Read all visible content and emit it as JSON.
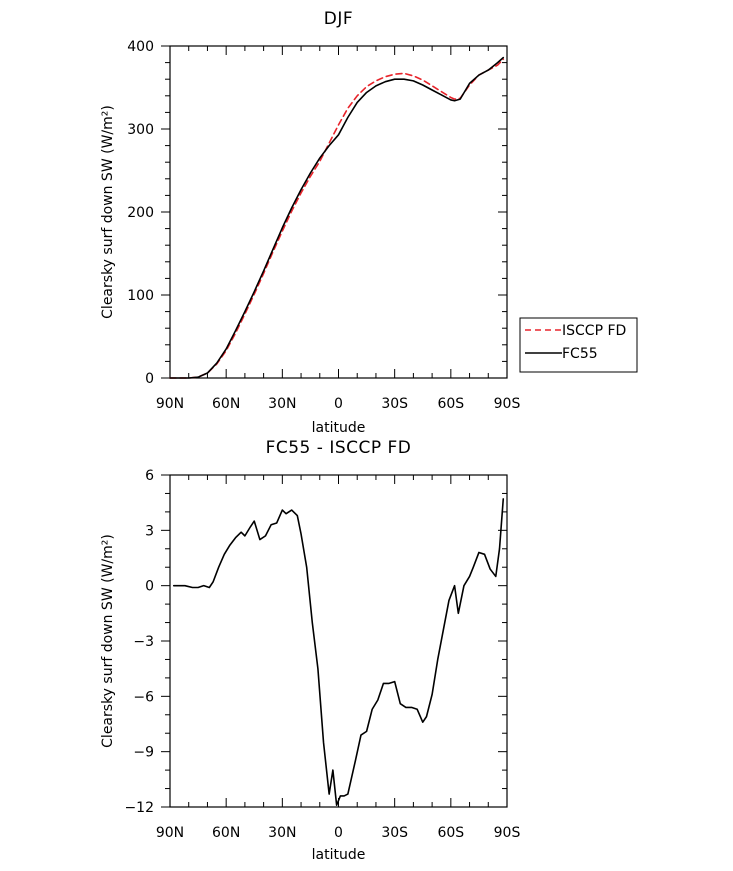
{
  "chart_data": [
    {
      "type": "line",
      "title": "DJF",
      "xlabel": "latitude",
      "ylabel": "Clearsky surf down SW (W/m²)",
      "xlim": [
        -90,
        90
      ],
      "ylim": [
        0,
        400
      ],
      "x_ticks": [
        -90,
        -60,
        -30,
        0,
        30,
        60,
        90
      ],
      "x_tick_labels": [
        "90N",
        "60N",
        "30N",
        "0",
        "30S",
        "60S",
        "90S"
      ],
      "y_ticks": [
        0,
        100,
        200,
        300,
        400
      ],
      "y_tick_labels": [
        "0",
        "100",
        "200",
        "300",
        "400"
      ],
      "legend_placement": "right",
      "series": [
        {
          "name": "ISCCP FD",
          "style": "dashed",
          "color": "#e8242b",
          "x": [
            -90,
            -85,
            -80,
            -75,
            -70,
            -65,
            -60,
            -55,
            -50,
            -45,
            -40,
            -35,
            -30,
            -25,
            -20,
            -15,
            -10,
            -5,
            0,
            5,
            10,
            15,
            20,
            25,
            30,
            35,
            40,
            45,
            50,
            55,
            60,
            62,
            65,
            70,
            75,
            80,
            85,
            88
          ],
          "y": [
            0,
            0,
            0,
            1,
            6,
            17,
            33,
            54,
            77,
            101,
            126,
            152,
            177,
            201,
            223,
            243,
            261,
            283,
            305,
            325,
            340,
            351,
            358,
            363,
            366,
            367,
            364,
            359,
            352,
            345,
            338,
            336,
            337,
            353,
            365,
            371,
            377,
            384
          ]
        },
        {
          "name": "FC55",
          "style": "solid",
          "color": "#000000",
          "x": [
            -90,
            -85,
            -80,
            -75,
            -70,
            -65,
            -60,
            -55,
            -50,
            -45,
            -40,
            -35,
            -30,
            -25,
            -20,
            -15,
            -10,
            -5,
            0,
            5,
            10,
            15,
            20,
            25,
            30,
            35,
            40,
            45,
            50,
            55,
            60,
            62,
            65,
            70,
            75,
            80,
            85,
            88
          ],
          "y": [
            0,
            0,
            0,
            1,
            6,
            18,
            35,
            57,
            80,
            104,
            129,
            155,
            181,
            205,
            227,
            247,
            265,
            280,
            293,
            314,
            332,
            344,
            352,
            357,
            360,
            360,
            358,
            353,
            347,
            341,
            335,
            334,
            336,
            355,
            365,
            371,
            380,
            386
          ]
        }
      ]
    },
    {
      "type": "line",
      "title": "FC55 - ISCCP FD",
      "xlabel": "latitude",
      "ylabel": "Clearsky surf down SW (W/m²)",
      "xlim": [
        -90,
        90
      ],
      "ylim": [
        -12,
        6
      ],
      "x_ticks": [
        -90,
        -60,
        -30,
        0,
        30,
        60,
        90
      ],
      "x_tick_labels": [
        "90N",
        "60N",
        "30N",
        "0",
        "30S",
        "60S",
        "90S"
      ],
      "y_ticks": [
        -12,
        -9,
        -6,
        -3,
        0,
        3,
        6
      ],
      "y_tick_labels": [
        "−12",
        "−9",
        "−6",
        "−3",
        "0",
        "3",
        "6"
      ],
      "series": [
        {
          "name": "FC55 - ISCCP FD",
          "style": "solid",
          "color": "#000000",
          "x": [
            -88,
            -82,
            -78,
            -75,
            -72,
            -69,
            -67,
            -64,
            -61,
            -58,
            -55,
            -52,
            -50,
            -47,
            -45,
            -42,
            -39,
            -36,
            -33,
            -30,
            -28,
            -25,
            -22,
            -20,
            -17,
            -14,
            -11,
            -8,
            -5,
            -3,
            -1,
            1,
            3,
            5,
            9,
            12,
            15,
            18,
            21,
            24,
            27,
            30,
            33,
            36,
            39,
            42,
            45,
            47,
            50,
            53,
            56,
            59,
            62,
            64,
            67,
            70,
            72,
            75,
            78,
            81,
            84,
            86,
            88
          ],
          "y": [
            0,
            0,
            -0.1,
            -0.1,
            0,
            -0.1,
            0.2,
            1.0,
            1.7,
            2.2,
            2.6,
            2.9,
            2.7,
            3.2,
            3.5,
            2.5,
            2.7,
            3.3,
            3.4,
            4.1,
            3.9,
            4.1,
            3.8,
            2.8,
            1.0,
            -2.0,
            -4.5,
            -8.5,
            -11.3,
            -10.0,
            -11.9,
            -11.4,
            -11.4,
            -11.3,
            -9.5,
            -8.1,
            -7.9,
            -6.7,
            -6.2,
            -5.3,
            -5.3,
            -5.2,
            -6.4,
            -6.6,
            -6.6,
            -6.7,
            -7.4,
            -7.1,
            -5.9,
            -4.0,
            -2.4,
            -0.8,
            0.0,
            -1.5,
            0.0,
            0.5,
            1.0,
            1.8,
            1.7,
            0.9,
            0.5,
            2.0,
            4.7
          ]
        }
      ]
    }
  ]
}
